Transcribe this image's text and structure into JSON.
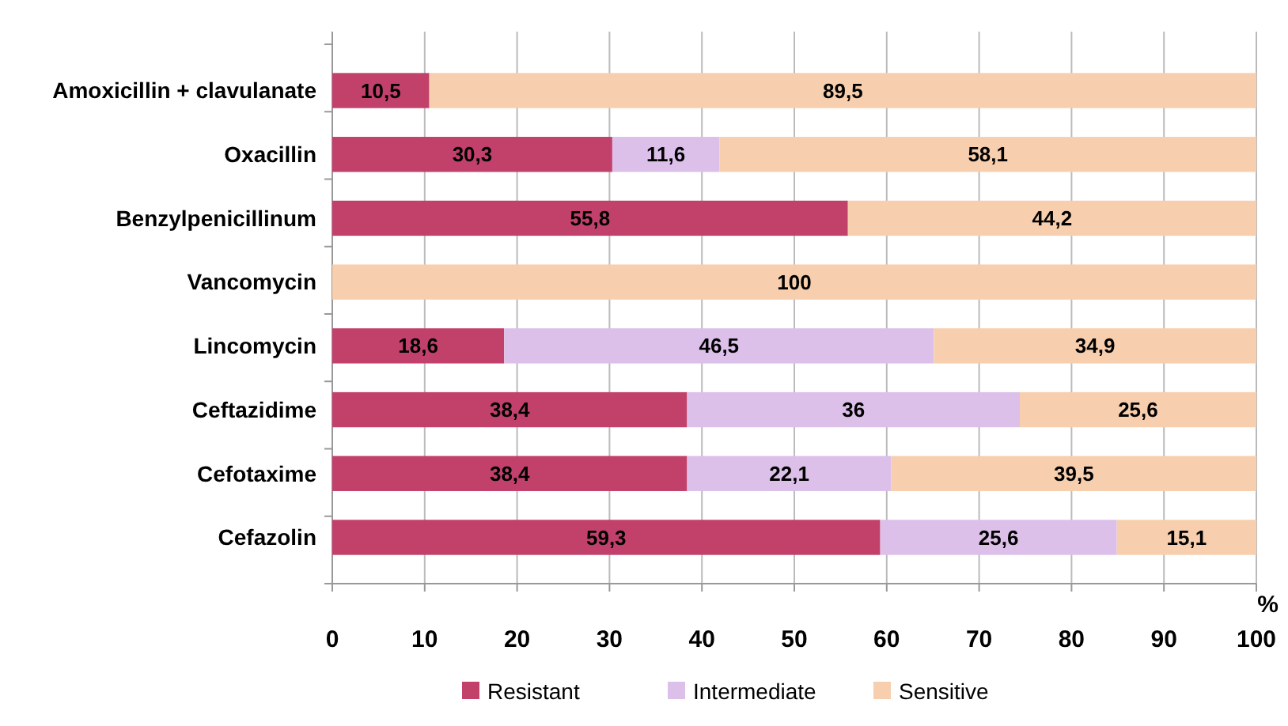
{
  "chart_data": {
    "type": "bar",
    "orientation": "horizontal",
    "stacked": true,
    "xlabel": "%",
    "categories": [
      "Amoxicillin + clavulanate",
      "Oxacillin",
      "Benzylpenicillinum",
      "Vancomycin",
      "Lincomycin",
      "Ceftazidime",
      "Cefotaxime",
      "Cefazolin"
    ],
    "series": [
      {
        "name": "Resistant",
        "color": "#c2416b",
        "values": [
          10.5,
          30.3,
          55.8,
          0,
          18.6,
          38.4,
          38.4,
          59.3
        ],
        "value_labels": [
          "10,5",
          "30,3",
          "55,8",
          null,
          "18,6",
          "38,4",
          "38,4",
          "59,3"
        ]
      },
      {
        "name": "Intermediate",
        "color": "#dcc0ea",
        "values": [
          0,
          11.6,
          0,
          0,
          46.5,
          36,
          22.1,
          25.6
        ],
        "value_labels": [
          null,
          "11,6",
          null,
          null,
          "46,5",
          "36",
          "22,1",
          "25,6"
        ]
      },
      {
        "name": "Sensitive",
        "color": "#f7cfae",
        "values": [
          89.5,
          58.1,
          44.2,
          100,
          34.9,
          25.6,
          39.5,
          15.1
        ],
        "value_labels": [
          "89,5",
          "58,1",
          "44,2",
          "100",
          "34,9",
          "25,6",
          "39,5",
          "15,1"
        ]
      }
    ],
    "xlim": [
      0,
      100
    ],
    "xticks": [
      0,
      10,
      20,
      30,
      40,
      50,
      60,
      70,
      80,
      90,
      100
    ],
    "grid": "x",
    "legend": "bottom"
  }
}
